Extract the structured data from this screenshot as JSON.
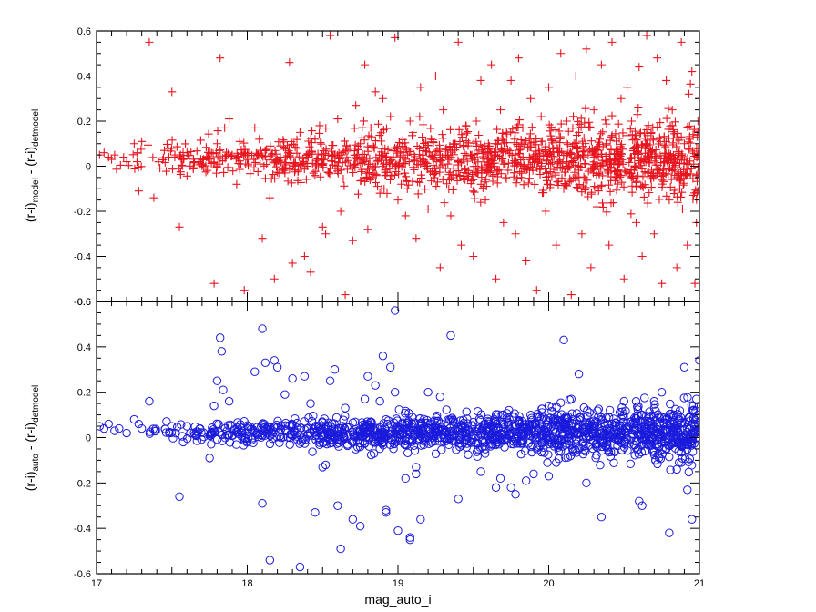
{
  "chart_data": [
    {
      "type": "scatter",
      "panel": "top",
      "marker": "plus",
      "color": "#e8141e",
      "ylabel_main": "(r-i)",
      "ylabel_sub1": "model",
      "ylabel_mid": " - (r-i)",
      "ylabel_sub2": "detmodel",
      "xlim": [
        17,
        21
      ],
      "ylim": [
        -0.6,
        0.6
      ],
      "yticks": [
        "-0.6",
        "-0.4",
        "-0.2",
        "0",
        "0.2",
        "0.4",
        "0.6"
      ],
      "grid": false,
      "points": [
        [
          17.02,
          0.05
        ],
        [
          17.05,
          0.06
        ],
        [
          17.08,
          0.04
        ],
        [
          17.1,
          0.03
        ],
        [
          17.12,
          0.05
        ],
        [
          17.18,
          0.04
        ],
        [
          17.2,
          0.02
        ],
        [
          17.25,
          0.1
        ],
        [
          17.27,
          0.06
        ],
        [
          17.3,
          0.11
        ],
        [
          17.28,
          -0.11
        ],
        [
          17.35,
          0.55
        ],
        [
          17.38,
          -0.14
        ],
        [
          17.45,
          0.07
        ],
        [
          17.48,
          0.04
        ],
        [
          17.5,
          0.33
        ],
        [
          17.52,
          0.05
        ],
        [
          17.55,
          -0.27
        ],
        [
          17.6,
          0.06
        ],
        [
          17.65,
          0.02
        ],
        [
          17.7,
          0.0
        ],
        [
          17.73,
          0.04
        ],
        [
          17.75,
          0.06
        ],
        [
          17.78,
          -0.52
        ],
        [
          17.8,
          0.1
        ],
        [
          17.82,
          0.48
        ],
        [
          17.85,
          0.17
        ],
        [
          17.88,
          0.21
        ],
        [
          17.9,
          0.05
        ],
        [
          17.93,
          -0.08
        ],
        [
          17.95,
          0.11
        ],
        [
          17.98,
          -0.55
        ],
        [
          18.0,
          0.03
        ],
        [
          18.05,
          0.17
        ],
        [
          18.08,
          0.12
        ],
        [
          18.1,
          -0.32
        ],
        [
          18.12,
          0.07
        ],
        [
          18.15,
          -0.14
        ],
        [
          18.18,
          -0.5
        ],
        [
          18.2,
          0.03
        ],
        [
          18.22,
          0.09
        ],
        [
          18.25,
          -0.03
        ],
        [
          18.28,
          0.46
        ],
        [
          18.3,
          -0.43
        ],
        [
          18.33,
          0.08
        ],
        [
          18.35,
          0.15
        ],
        [
          18.38,
          -0.4
        ],
        [
          18.4,
          0.0
        ],
        [
          18.42,
          -0.47
        ],
        [
          18.45,
          0.12
        ],
        [
          18.48,
          0.18
        ],
        [
          18.5,
          -0.27
        ],
        [
          18.52,
          -0.3
        ],
        [
          18.55,
          0.58
        ],
        [
          18.58,
          0.05
        ],
        [
          18.6,
          0.21
        ],
        [
          18.62,
          -0.2
        ],
        [
          18.65,
          -0.57
        ],
        [
          18.68,
          0.08
        ],
        [
          18.7,
          -0.33
        ],
        [
          18.72,
          0.27
        ],
        [
          18.75,
          0.1
        ],
        [
          18.78,
          0.45
        ],
        [
          18.8,
          -0.28
        ],
        [
          18.82,
          0.17
        ],
        [
          18.85,
          0.33
        ],
        [
          18.88,
          -0.12
        ],
        [
          18.9,
          0.3
        ],
        [
          18.92,
          -0.04
        ],
        [
          18.95,
          0.22
        ],
        [
          18.98,
          0.57
        ],
        [
          19.0,
          -0.15
        ],
        [
          19.03,
          0.1
        ],
        [
          19.05,
          -0.22
        ],
        [
          19.08,
          0.2
        ],
        [
          19.1,
          0.15
        ],
        [
          19.12,
          -0.32
        ],
        [
          19.15,
          0.35
        ],
        [
          19.18,
          0.0
        ],
        [
          19.2,
          -0.19
        ],
        [
          19.22,
          0.12
        ],
        [
          19.25,
          0.4
        ],
        [
          19.28,
          -0.45
        ],
        [
          19.3,
          0.25
        ],
        [
          19.32,
          0.08
        ],
        [
          19.35,
          -0.22
        ],
        [
          19.38,
          0.1
        ],
        [
          19.4,
          0.55
        ],
        [
          19.42,
          -0.35
        ],
        [
          19.45,
          0.18
        ],
        [
          19.48,
          0.05
        ],
        [
          19.5,
          -0.4
        ],
        [
          19.52,
          0.2
        ],
        [
          19.55,
          0.38
        ],
        [
          19.58,
          -0.15
        ],
        [
          19.6,
          0.1
        ],
        [
          19.62,
          0.45
        ],
        [
          19.65,
          -0.5
        ],
        [
          19.68,
          0.25
        ],
        [
          19.7,
          -0.25
        ],
        [
          19.72,
          0.15
        ],
        [
          19.75,
          0.38
        ],
        [
          19.78,
          -0.3
        ],
        [
          19.8,
          0.48
        ],
        [
          19.82,
          -0.05
        ],
        [
          19.85,
          -0.42
        ],
        [
          19.88,
          0.3
        ],
        [
          19.9,
          0.05
        ],
        [
          19.92,
          -0.55
        ],
        [
          19.95,
          0.22
        ],
        [
          19.98,
          -0.2
        ],
        [
          20.0,
          0.35
        ],
        [
          20.02,
          0.12
        ],
        [
          20.05,
          -0.35
        ],
        [
          20.08,
          0.5
        ],
        [
          20.1,
          -0.1
        ],
        [
          20.12,
          0.2
        ],
        [
          20.15,
          -0.57
        ],
        [
          20.18,
          0.4
        ],
        [
          20.2,
          0.05
        ],
        [
          20.22,
          -0.3
        ],
        [
          20.25,
          0.52
        ],
        [
          20.28,
          -0.45
        ],
        [
          20.3,
          0.25
        ],
        [
          20.32,
          -0.18
        ],
        [
          20.35,
          0.45
        ],
        [
          20.38,
          0.1
        ],
        [
          20.4,
          -0.35
        ],
        [
          20.42,
          0.55
        ],
        [
          20.45,
          -0.05
        ],
        [
          20.48,
          0.3
        ],
        [
          20.5,
          -0.5
        ],
        [
          20.52,
          0.35
        ],
        [
          20.55,
          0.2
        ],
        [
          20.58,
          -0.25
        ],
        [
          20.6,
          0.44
        ],
        [
          20.62,
          -0.4
        ],
        [
          20.65,
          0.58
        ],
        [
          20.68,
          0.15
        ],
        [
          20.7,
          -0.3
        ],
        [
          20.72,
          0.48
        ],
        [
          20.75,
          -0.52
        ],
        [
          20.78,
          0.38
        ],
        [
          20.8,
          -0.15
        ],
        [
          20.82,
          0.25
        ],
        [
          20.85,
          -0.45
        ],
        [
          20.88,
          0.55
        ],
        [
          20.9,
          0.1
        ],
        [
          20.92,
          -0.35
        ],
        [
          20.95,
          0.42
        ],
        [
          20.98,
          -0.25
        ],
        [
          21.0,
          0.3
        ],
        [
          20.97,
          -0.52
        ],
        [
          20.99,
          0.2
        ],
        [
          20.93,
          0.32
        ],
        [
          20.87,
          -0.1
        ]
      ],
      "density": {
        "x0": 17.1,
        "x1": 21.0,
        "n": 1400,
        "center": 0.03,
        "spread0": 0.03,
        "spread1": 0.09,
        "seed": 7
      }
    },
    {
      "type": "scatter",
      "panel": "bottom",
      "marker": "circle",
      "color": "#1a1adc",
      "ylabel_main": "(r-i)",
      "ylabel_sub1": "auto",
      "ylabel_mid": " - (r-i)",
      "ylabel_sub2": "detmodel",
      "xlabel": "mag_auto_i",
      "xlim": [
        17,
        21
      ],
      "ylim": [
        -0.6,
        0.6
      ],
      "yticks": [
        "-0.6",
        "-0.4",
        "-0.2",
        "0",
        "0.2",
        "0.4",
        "0.6"
      ],
      "xticks": [
        "17",
        "18",
        "19",
        "20",
        "21"
      ],
      "grid": false,
      "points": [
        [
          17.02,
          0.05
        ],
        [
          17.05,
          0.04
        ],
        [
          17.08,
          0.06
        ],
        [
          17.12,
          0.03
        ],
        [
          17.15,
          0.04
        ],
        [
          17.2,
          0.02
        ],
        [
          17.25,
          0.08
        ],
        [
          17.28,
          0.06
        ],
        [
          17.3,
          0.04
        ],
        [
          17.35,
          0.16
        ],
        [
          17.5,
          0.05
        ],
        [
          17.55,
          -0.26
        ],
        [
          17.6,
          0.05
        ],
        [
          17.75,
          -0.09
        ],
        [
          17.78,
          0.14
        ],
        [
          17.8,
          0.25
        ],
        [
          17.82,
          0.44
        ],
        [
          17.83,
          0.38
        ],
        [
          17.84,
          0.21
        ],
        [
          17.88,
          0.16
        ],
        [
          18.05,
          0.29
        ],
        [
          18.1,
          -0.29
        ],
        [
          18.1,
          0.48
        ],
        [
          18.12,
          0.33
        ],
        [
          18.15,
          -0.54
        ],
        [
          18.18,
          0.34
        ],
        [
          18.2,
          0.31
        ],
        [
          18.25,
          0.19
        ],
        [
          18.3,
          0.26
        ],
        [
          18.35,
          -0.57
        ],
        [
          18.38,
          0.27
        ],
        [
          18.42,
          0.15
        ],
        [
          18.45,
          -0.33
        ],
        [
          18.5,
          -0.13
        ],
        [
          18.52,
          -0.12
        ],
        [
          18.55,
          0.25
        ],
        [
          18.58,
          0.3
        ],
        [
          18.6,
          -0.3
        ],
        [
          18.62,
          -0.49
        ],
        [
          18.65,
          0.13
        ],
        [
          18.7,
          -0.36
        ],
        [
          18.75,
          -0.39
        ],
        [
          18.78,
          0.17
        ],
        [
          18.8,
          0.27
        ],
        [
          18.82,
          0.07
        ],
        [
          18.85,
          0.23
        ],
        [
          18.88,
          0.16
        ],
        [
          18.9,
          0.36
        ],
        [
          18.92,
          -0.33
        ],
        [
          18.92,
          -0.32
        ],
        [
          18.95,
          0.31
        ],
        [
          18.98,
          0.2
        ],
        [
          18.98,
          0.56
        ],
        [
          19.0,
          -0.41
        ],
        [
          19.05,
          -0.18
        ],
        [
          19.08,
          -0.45
        ],
        [
          19.08,
          -0.44
        ],
        [
          19.12,
          -0.13
        ],
        [
          19.12,
          -0.16
        ],
        [
          19.15,
          -0.36
        ],
        [
          19.2,
          0.2
        ],
        [
          19.28,
          0.18
        ],
        [
          19.35,
          0.45
        ],
        [
          19.4,
          -0.27
        ],
        [
          19.55,
          -0.15
        ],
        [
          19.65,
          -0.22
        ],
        [
          19.68,
          -0.18
        ],
        [
          19.75,
          -0.22
        ],
        [
          19.78,
          -0.25
        ],
        [
          19.85,
          -0.19
        ],
        [
          19.9,
          -0.16
        ],
        [
          20.0,
          -0.17
        ],
        [
          20.05,
          -0.11
        ],
        [
          20.1,
          0.43
        ],
        [
          20.15,
          0.17
        ],
        [
          20.2,
          0.28
        ],
        [
          20.25,
          -0.2
        ],
        [
          20.35,
          -0.35
        ],
        [
          20.4,
          0.09
        ],
        [
          20.5,
          0.16
        ],
        [
          20.6,
          -0.28
        ],
        [
          20.62,
          -0.3
        ],
        [
          20.7,
          0.16
        ],
        [
          20.75,
          0.2
        ],
        [
          20.8,
          -0.42
        ],
        [
          20.85,
          -0.14
        ],
        [
          20.9,
          0.31
        ],
        [
          20.95,
          -0.36
        ],
        [
          20.98,
          0.17
        ],
        [
          21.0,
          0.34
        ],
        [
          20.92,
          -0.23
        ],
        [
          20.88,
          -0.11
        ]
      ],
      "density": {
        "x0": 17.3,
        "x1": 21.0,
        "n": 1500,
        "center": 0.02,
        "spread0": 0.018,
        "spread1": 0.06,
        "seed": 13
      }
    }
  ]
}
